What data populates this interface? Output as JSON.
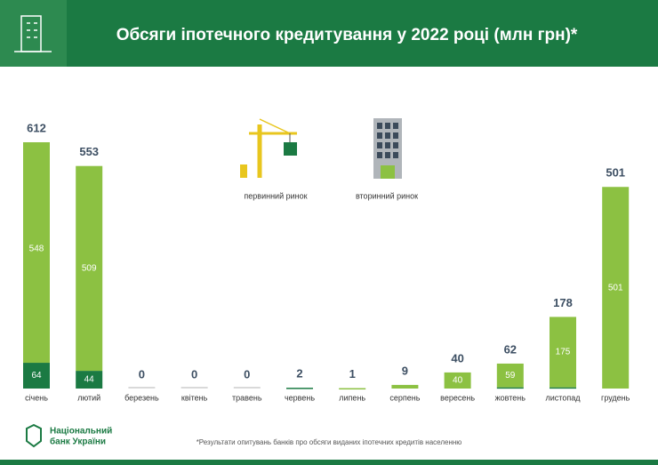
{
  "header": {
    "title": "Обсяги іпотечного кредитування у 2022 році (млн грн)*"
  },
  "chart_data": {
    "type": "bar",
    "stacked": true,
    "categories": [
      "січень",
      "лютий",
      "березень",
      "квітень",
      "травень",
      "червень",
      "липень",
      "серпень",
      "вересень",
      "жовтень",
      "листопад",
      "грудень"
    ],
    "series": [
      {
        "name": "первинний ринок",
        "color": "#1b7a43",
        "values": [
          64,
          44,
          0,
          0,
          0,
          2,
          0,
          0,
          0,
          3,
          3,
          0
        ]
      },
      {
        "name": "вторинний ринок",
        "color": "#8cc142",
        "values": [
          548,
          509,
          0,
          0,
          0,
          0,
          1,
          9,
          40,
          59,
          175,
          501
        ]
      }
    ],
    "totals": [
      612,
      553,
      0,
      0,
      0,
      2,
      1,
      9,
      40,
      62,
      178,
      501
    ]
  },
  "footer": {
    "logo": [
      "Національний",
      "банк України"
    ],
    "note": "*Результати опитувань банків про обсяги виданих іпотечних кредитів населенню"
  }
}
